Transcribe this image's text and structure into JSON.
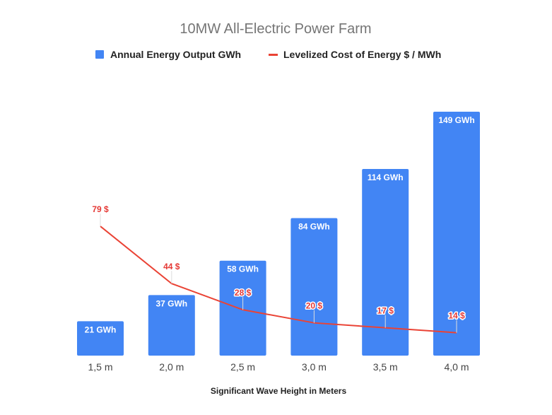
{
  "chart_data": {
    "type": "bar+line",
    "title": "10MW All-Electric Power Farm",
    "xlabel": "Significant Wave Height in Meters",
    "ylabel": "",
    "categories": [
      "1,5 m",
      "2,0 m",
      "2,5 m",
      "3,0 m",
      "3,5 m",
      "4,0 m"
    ],
    "series": [
      {
        "name": "Annual Energy Output GWh",
        "type": "bar",
        "color": "#4285f4",
        "values": [
          21,
          37,
          58,
          84,
          114,
          149
        ],
        "labels": [
          "21 GWh",
          "37 GWh",
          "58 GWh",
          "84 GWh",
          "114 GWh",
          "149 GWh"
        ]
      },
      {
        "name": "Levelized Cost of Energy $ / MWh",
        "type": "line",
        "color": "#ea4335",
        "values": [
          79,
          44,
          28,
          20,
          17,
          14
        ],
        "labels": [
          "79 $",
          "44 $",
          "28 $",
          "20 $",
          "17 $",
          "14 $"
        ]
      }
    ],
    "ylim": [
      0,
      149
    ],
    "grid": false,
    "y_axis_visible": false,
    "legend": "top"
  }
}
